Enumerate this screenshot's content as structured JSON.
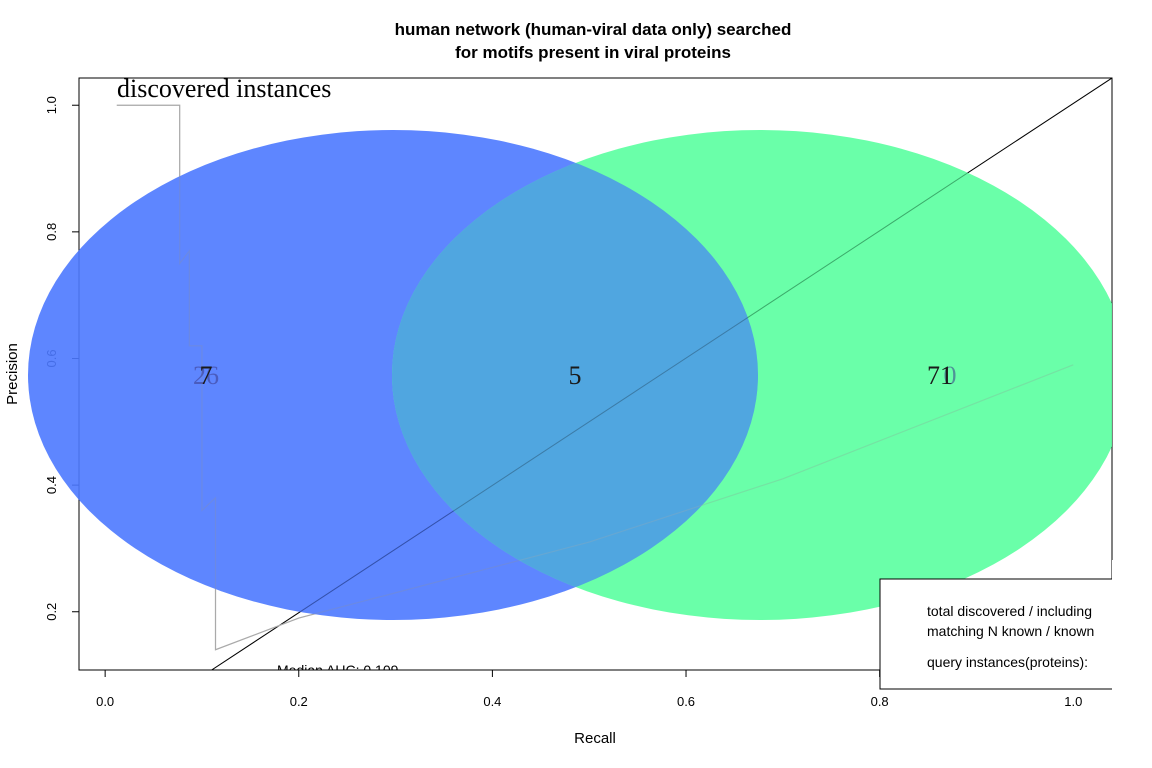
{
  "chart_data": {
    "type": "line",
    "title_line1": "human network (human-viral data only) searched",
    "title_line2": "for motifs present in viral proteins",
    "xlabel": "Recall",
    "ylabel": "Precision",
    "xlim": [
      -0.027,
      1.04
    ],
    "ylim": [
      0.108,
      1.043
    ],
    "x_ticks": [
      "0.0",
      "0.2",
      "0.4",
      "0.6",
      "0.8",
      "1.0"
    ],
    "y_ticks": [
      "0.2",
      "0.4",
      "0.6",
      "0.8",
      "1.0"
    ],
    "grid": false,
    "diagonal": {
      "x": [
        0.11,
        1.04
      ],
      "y": [
        0.108,
        1.043
      ]
    },
    "series": [
      {
        "color": "#aaaaaa",
        "x": [
          0.012,
          0.077,
          0.077,
          0.087,
          0.087,
          0.1,
          0.1,
          0.114,
          0.114,
          0.2,
          0.3,
          0.4,
          0.5,
          0.6,
          0.7,
          0.8,
          0.9,
          1.0
        ],
        "y": [
          1.0,
          1.0,
          0.75,
          0.77,
          0.62,
          0.62,
          0.36,
          0.38,
          0.14,
          0.19,
          0.23,
          0.27,
          0.31,
          0.36,
          0.41,
          0.47,
          0.53,
          0.59
        ]
      }
    ],
    "annotation_auc": "Median AUC: 0.109"
  },
  "venn": {
    "title": "discovered instances",
    "left_color": "#4d79ff",
    "right_color": "#5affa0",
    "overlap_color": "#50a6e0",
    "left_only_count": "7",
    "left_only_ghost_count": "26",
    "both_count": "5",
    "right_only_count": "71",
    "right_only_ghost_count": "0"
  },
  "legend": {
    "line1": "total discovered / including",
    "line2": "matching N known / known",
    "line3": "query instances(proteins):"
  }
}
